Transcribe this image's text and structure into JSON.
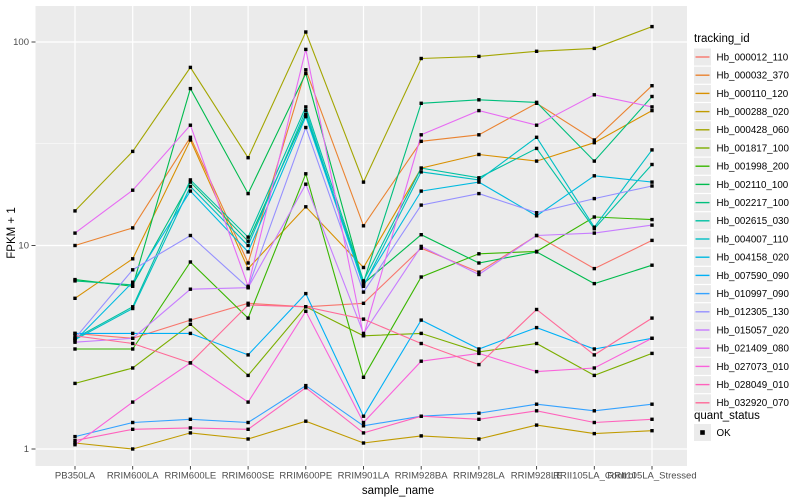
{
  "figure": {
    "y_axis_title": "FPKM + 1",
    "x_axis_title": "sample_name",
    "y_tick_labels": [
      "1",
      "10",
      "100"
    ],
    "legend": {
      "tracking_title": "tracking_id",
      "quant_title": "quant_status",
      "quant_items": [
        {
          "label": "OK",
          "marker": "black-square"
        }
      ]
    },
    "colors": {
      "panel_bg": "#EBEBEB",
      "grid": "#FFFFFF",
      "tick_mark": "#333333",
      "tick_text": "#4D4D4D",
      "point_marker": "#000000",
      "legend_key_bg": "#EBEBEB"
    }
  },
  "chart_data": {
    "type": "line",
    "title": "",
    "xlabel": "sample_name",
    "ylabel": "FPKM + 1",
    "x_type": "categorical",
    "y_scale": "log10",
    "y_ticks": [
      1,
      10,
      100
    ],
    "y_minor_ticks": [
      3.1623,
      31.623
    ],
    "ylim": [
      0.82,
      150
    ],
    "grid": true,
    "legend_position": "right",
    "point_marker": "filled-black-square",
    "categories": [
      "PB350LA",
      "RRIM600LA",
      "RRIM600LE",
      "RRIM600SE",
      "RRIM600PE",
      "RRIM901LA",
      "RRIM928BA",
      "RRIM928LA",
      "RRIM928LE",
      "RRII105LA_Control",
      "RRII105LA_Stressed"
    ],
    "series": [
      {
        "name": "Hb_000012_110",
        "color": "#F8766D",
        "values": [
          3.7,
          3.5,
          4.3,
          5.2,
          5.0,
          5.2,
          9.7,
          7.4,
          11.2,
          7.7,
          10.6
        ]
      },
      {
        "name": "Hb_000032_370",
        "color": "#EA8331",
        "values": [
          10.0,
          12.2,
          34.0,
          8.2,
          73.0,
          12.5,
          32.5,
          35.0,
          50.0,
          33.0,
          61.0
        ]
      },
      {
        "name": "Hb_000110_120",
        "color": "#D89000",
        "values": [
          5.5,
          8.6,
          33.0,
          7.7,
          15.5,
          7.8,
          24.0,
          28.0,
          26.0,
          32.0,
          46.0
        ]
      },
      {
        "name": "Hb_000288_020",
        "color": "#C09B00",
        "values": [
          1.07,
          1.0,
          1.2,
          1.12,
          1.37,
          1.07,
          1.16,
          1.12,
          1.31,
          1.19,
          1.23
        ]
      },
      {
        "name": "Hb_000428_060",
        "color": "#A3A500",
        "values": [
          14.8,
          29.0,
          75.0,
          27.0,
          112.0,
          20.5,
          83.0,
          85.0,
          90.0,
          93.0,
          119.0
        ]
      },
      {
        "name": "Hb_001817_100",
        "color": "#7CAE00",
        "values": [
          2.1,
          2.5,
          4.1,
          2.3,
          5.0,
          3.6,
          3.7,
          3.0,
          3.3,
          2.3,
          2.95
        ]
      },
      {
        "name": "Hb_001998_200",
        "color": "#39B600",
        "values": [
          3.1,
          3.1,
          8.3,
          4.4,
          22.5,
          2.25,
          7.0,
          9.1,
          9.35,
          13.8,
          13.4
        ]
      },
      {
        "name": "Hb_002110_100",
        "color": "#00BB4E",
        "values": [
          6.8,
          6.3,
          59.0,
          18.0,
          70.0,
          6.5,
          11.3,
          8.2,
          9.3,
          6.5,
          8.0
        ]
      },
      {
        "name": "Hb_002217_100",
        "color": "#00BF7D",
        "values": [
          6.7,
          6.4,
          20.5,
          10.5,
          44.0,
          6.6,
          50.0,
          52.0,
          50.5,
          26.0,
          54.0
        ]
      },
      {
        "name": "Hb_002615_030",
        "color": "#00C1A3",
        "values": [
          3.5,
          5.0,
          21.0,
          11.0,
          48.0,
          6.7,
          24.0,
          21.5,
          30.0,
          12.1,
          25.0
        ]
      },
      {
        "name": "Hb_004007_110",
        "color": "#00BFC4",
        "values": [
          3.45,
          4.9,
          19.5,
          10.0,
          46.0,
          6.3,
          23.0,
          21.0,
          34.0,
          12.3,
          29.5
        ]
      },
      {
        "name": "Hb_004158_020",
        "color": "#00BAE0",
        "values": [
          3.4,
          6.6,
          18.5,
          9.3,
          43.0,
          6.4,
          18.5,
          20.5,
          14.0,
          22.0,
          20.5
        ]
      },
      {
        "name": "Hb_007590_090",
        "color": "#00B0F6",
        "values": [
          3.7,
          3.7,
          3.7,
          2.9,
          5.8,
          1.45,
          4.3,
          3.1,
          3.95,
          3.1,
          3.5
        ]
      },
      {
        "name": "Hb_010997_090",
        "color": "#35A2FF",
        "values": [
          1.15,
          1.35,
          1.4,
          1.35,
          2.05,
          1.3,
          1.45,
          1.5,
          1.66,
          1.54,
          1.66
        ]
      },
      {
        "name": "Hb_012305_130",
        "color": "#9590FF",
        "values": [
          3.5,
          7.6,
          11.2,
          6.2,
          38.0,
          5.9,
          15.8,
          18.0,
          14.5,
          17.0,
          19.6
        ]
      },
      {
        "name": "Hb_015057_020",
        "color": "#C77CFF",
        "values": [
          3.35,
          3.5,
          6.1,
          6.2,
          20.0,
          3.7,
          9.9,
          7.2,
          11.2,
          11.5,
          12.6
        ]
      },
      {
        "name": "Hb_021409_080",
        "color": "#E76BF3",
        "values": [
          11.5,
          18.7,
          39.0,
          6.3,
          92.0,
          3.6,
          35.0,
          46.0,
          39.0,
          55.0,
          48.0
        ]
      },
      {
        "name": "Hb_027073_010",
        "color": "#FA62DB",
        "values": [
          1.05,
          1.7,
          2.65,
          1.7,
          4.75,
          1.35,
          2.7,
          2.95,
          2.4,
          2.5,
          3.5
        ]
      },
      {
        "name": "Hb_028049_010",
        "color": "#FF62BC",
        "values": [
          1.1,
          1.25,
          1.27,
          1.25,
          2.0,
          1.2,
          1.45,
          1.4,
          1.54,
          1.35,
          1.4
        ]
      },
      {
        "name": "Hb_032920_070",
        "color": "#FF6A98",
        "values": [
          3.6,
          3.3,
          2.65,
          5.1,
          5.0,
          4.35,
          3.3,
          2.6,
          4.85,
          2.9,
          4.4
        ]
      }
    ]
  }
}
